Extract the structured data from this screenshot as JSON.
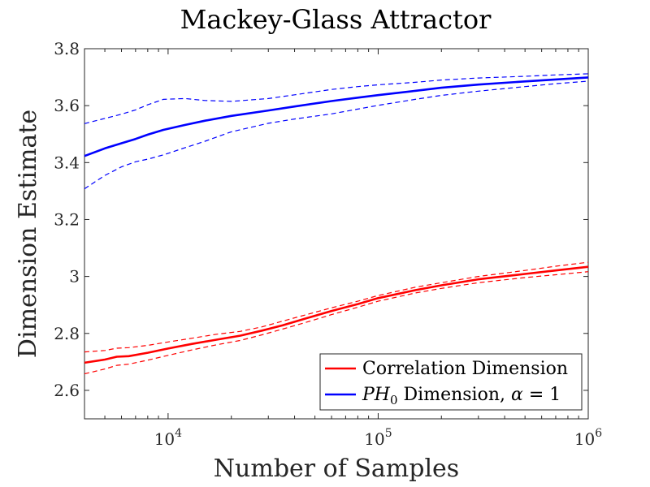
{
  "chart_data": {
    "type": "line",
    "title": "Mackey-Glass Attractor",
    "xlabel": "Number of Samples",
    "ylabel": "Dimension Estimate",
    "xscale": "log",
    "xlim": [
      4000,
      1000000
    ],
    "ylim": [
      2.5,
      3.8
    ],
    "xticks": [
      10000,
      100000,
      1000000
    ],
    "xtick_labels": [
      {
        "base": "10",
        "exp": "4"
      },
      {
        "base": "10",
        "exp": "5"
      },
      {
        "base": "10",
        "exp": "6"
      }
    ],
    "yticks": [
      2.6,
      2.8,
      3.0,
      3.2,
      3.4,
      3.6,
      3.8
    ],
    "ytick_labels": [
      "2.6",
      "2.8",
      "3",
      "3.2",
      "3.4",
      "3.6",
      "3.8"
    ],
    "grid": false,
    "legend_position": "bottom-right",
    "series": [
      {
        "name": "Correlation Dimension",
        "color": "#ff0000",
        "x": [
          4000,
          5000,
          5700,
          6500,
          8000,
          10000,
          13000,
          17000,
          22000,
          28000,
          35000,
          45000,
          60000,
          80000,
          100000,
          150000,
          200000,
          300000,
          500000,
          700000,
          1000000
        ],
        "mean": [
          2.697,
          2.708,
          2.718,
          2.72,
          2.732,
          2.747,
          2.763,
          2.778,
          2.792,
          2.81,
          2.828,
          2.852,
          2.879,
          2.903,
          2.924,
          2.952,
          2.969,
          2.99,
          3.009,
          3.021,
          3.034
        ],
        "upper": [
          2.735,
          2.74,
          2.748,
          2.75,
          2.758,
          2.77,
          2.783,
          2.797,
          2.807,
          2.823,
          2.843,
          2.865,
          2.89,
          2.913,
          2.933,
          2.962,
          2.978,
          3.0,
          3.021,
          3.036,
          3.05
        ],
        "lower": [
          2.658,
          2.675,
          2.688,
          2.692,
          2.706,
          2.723,
          2.742,
          2.76,
          2.775,
          2.795,
          2.815,
          2.838,
          2.866,
          2.892,
          2.913,
          2.942,
          2.958,
          2.978,
          2.996,
          3.006,
          3.017
        ]
      },
      {
        "name": "PH0 Dimension, α = 1",
        "name_parts": {
          "sym": "PH",
          "sub": "0",
          "rest": " Dimension, ",
          "alpha": "α",
          "eq": " = 1"
        },
        "color": "#0000ff",
        "x": [
          4000,
          5000,
          6000,
          7000,
          8000,
          9500,
          12000,
          15000,
          20000,
          30000,
          40000,
          60000,
          80000,
          100000,
          150000,
          200000,
          300000,
          500000,
          700000,
          1000000
        ],
        "mean": [
          3.423,
          3.45,
          3.468,
          3.483,
          3.498,
          3.515,
          3.532,
          3.547,
          3.564,
          3.583,
          3.597,
          3.616,
          3.628,
          3.637,
          3.652,
          3.663,
          3.674,
          3.685,
          3.692,
          3.699
        ],
        "upper": [
          3.537,
          3.555,
          3.57,
          3.585,
          3.603,
          3.622,
          3.625,
          3.618,
          3.615,
          3.625,
          3.638,
          3.657,
          3.667,
          3.673,
          3.682,
          3.69,
          3.697,
          3.703,
          3.708,
          3.712
        ],
        "lower": [
          3.308,
          3.355,
          3.385,
          3.403,
          3.412,
          3.427,
          3.452,
          3.475,
          3.508,
          3.538,
          3.553,
          3.571,
          3.588,
          3.601,
          3.622,
          3.636,
          3.651,
          3.667,
          3.677,
          3.686
        ]
      }
    ]
  }
}
